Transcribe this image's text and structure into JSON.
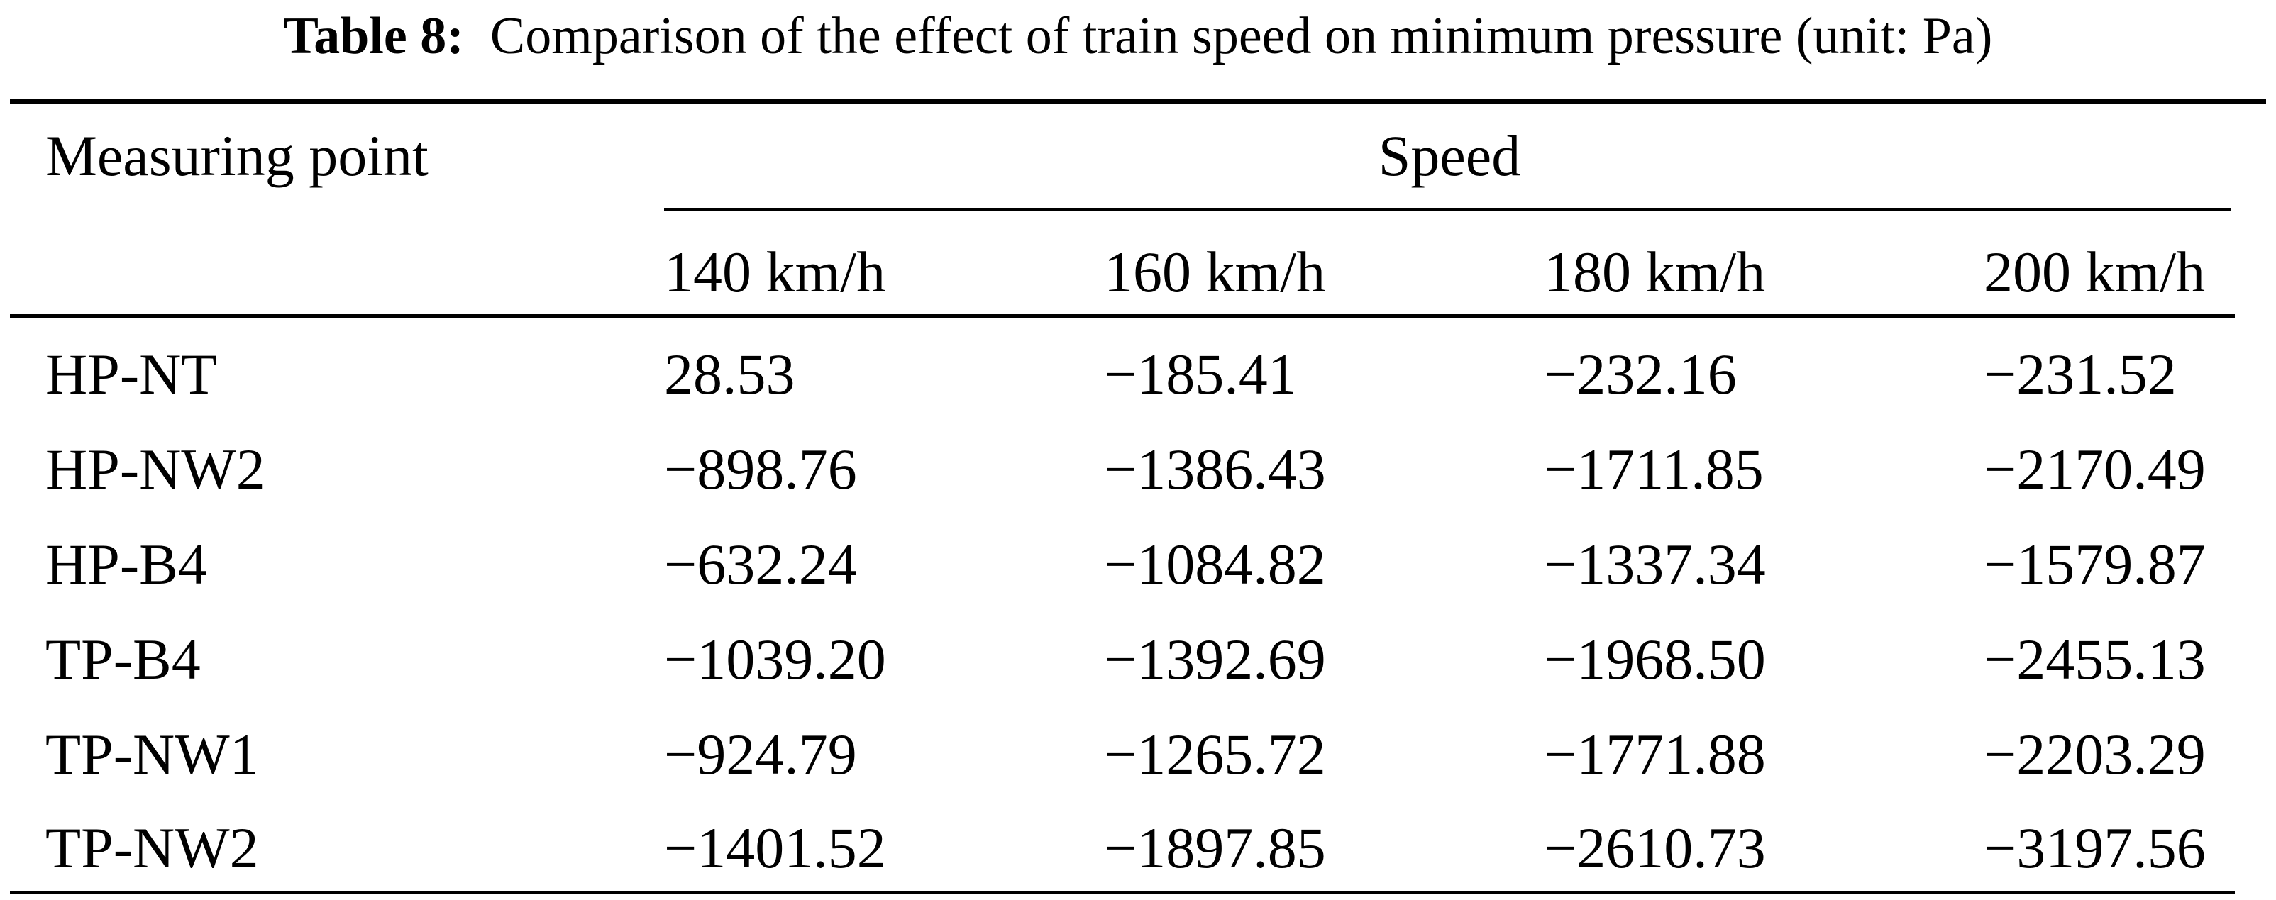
{
  "caption": {
    "label": "Table 8:",
    "text": "Comparison of the effect of train speed on minimum pressure (unit: Pa)"
  },
  "table": {
    "header_measuring_point": "Measuring point",
    "header_speed": "Speed",
    "speed_columns": [
      "140 km/h",
      "160 km/h",
      "180 km/h",
      "200 km/h"
    ],
    "rows": [
      {
        "point": "HP-NT",
        "values": [
          "28.53",
          "−185.41",
          "−232.16",
          "−231.52"
        ]
      },
      {
        "point": "HP-NW2",
        "values": [
          "−898.76",
          "−1386.43",
          "−1711.85",
          "−2170.49"
        ]
      },
      {
        "point": "HP-B4",
        "values": [
          "−632.24",
          "−1084.82",
          "−1337.34",
          "−1579.87"
        ]
      },
      {
        "point": "TP-B4",
        "values": [
          "−1039.20",
          "−1392.69",
          "−1968.50",
          "−2455.13"
        ]
      },
      {
        "point": "TP-NW1",
        "values": [
          "−924.79",
          "−1265.72",
          "−1771.88",
          "−2203.29"
        ]
      },
      {
        "point": "TP-NW2",
        "values": [
          "−1401.52",
          "−1897.85",
          "−2610.73",
          "−3197.56"
        ]
      }
    ]
  }
}
